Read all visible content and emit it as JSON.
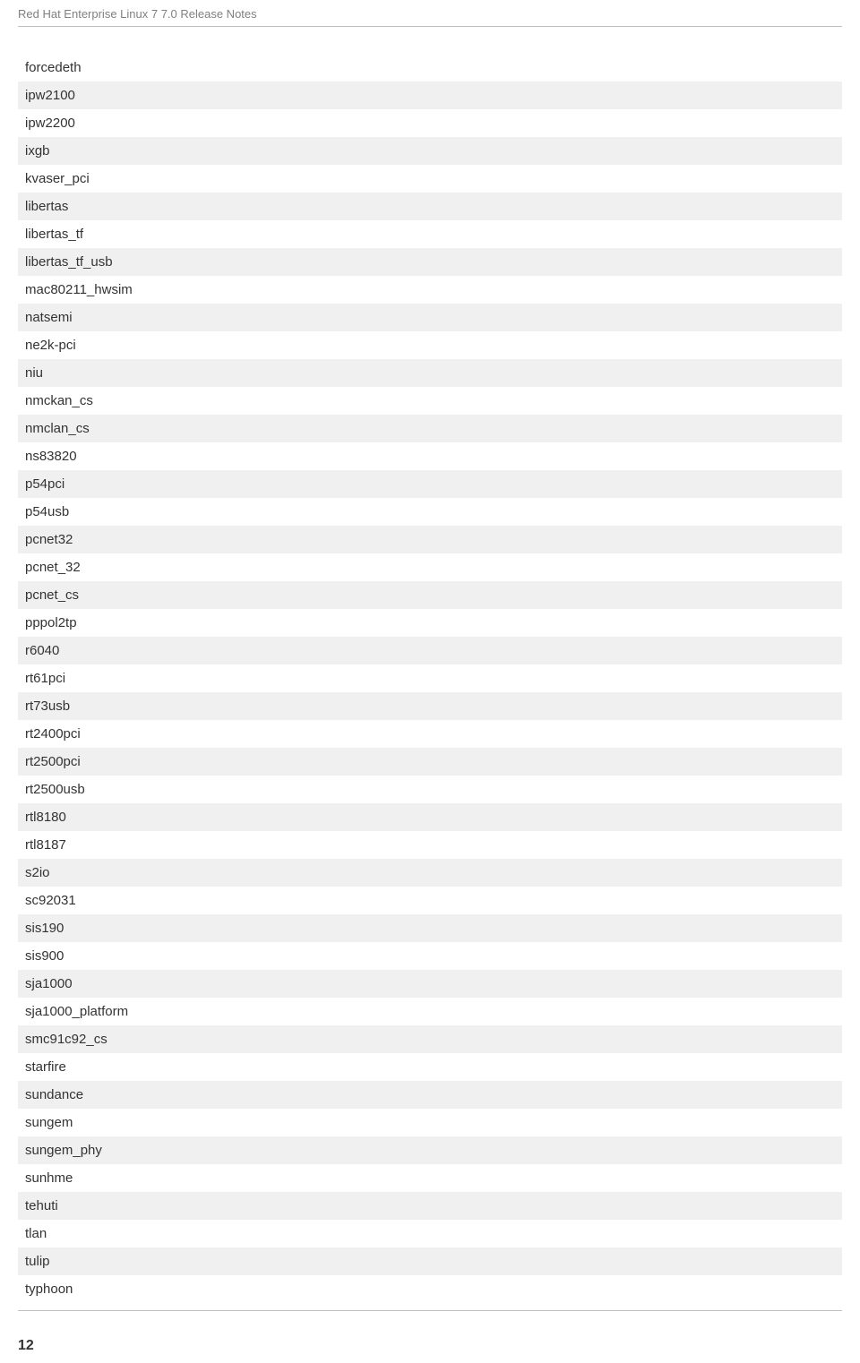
{
  "header": {
    "title": "Red Hat Enterprise Linux 7 7.0 Release Notes"
  },
  "items": [
    "forcedeth",
    "ipw2100",
    "ipw2200",
    "ixgb",
    "kvaser_pci",
    "libertas",
    "libertas_tf",
    "libertas_tf_usb",
    "mac80211_hwsim",
    "natsemi",
    "ne2k-pci",
    "niu",
    "nmckan_cs",
    "nmclan_cs",
    "ns83820",
    "p54pci",
    "p54usb",
    "pcnet32",
    "pcnet_32",
    "pcnet_cs",
    "pppol2tp",
    "r6040",
    "rt61pci",
    "rt73usb",
    "rt2400pci",
    "rt2500pci",
    "rt2500usb",
    "rtl8180",
    "rtl8187",
    "s2io",
    "sc92031",
    "sis190",
    "sis900",
    "sja1000",
    "sja1000_platform",
    "smc91c92_cs",
    "starfire",
    "sundance",
    "sungem",
    "sungem_phy",
    "sunhme",
    "tehuti",
    "tlan",
    "tulip",
    "typhoon"
  ],
  "footer": {
    "page_number": "12"
  },
  "styling": {
    "odd_row_bg": "#f0f0f0",
    "even_row_bg": "#ffffff",
    "text_color": "#333333",
    "header_color": "#808080",
    "line_color": "#c0c0c0",
    "font_size_items": 15,
    "font_size_header": 13,
    "font_size_page": 16
  }
}
